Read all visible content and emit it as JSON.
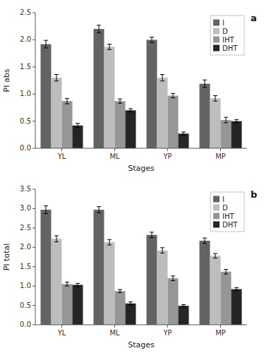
{
  "chart_data": [
    {
      "type": "bar",
      "title": "a",
      "xlabel": "Stages",
      "ylabel": "PI abs",
      "categories": [
        "YL",
        "ML",
        "YP",
        "MP"
      ],
      "series": [
        {
          "name": "I",
          "color": "#636363",
          "values": [
            1.92,
            2.2,
            2.0,
            1.19
          ],
          "errors": [
            0.07,
            0.07,
            0.05,
            0.07
          ]
        },
        {
          "name": "D",
          "color": "#bdbdbd",
          "values": [
            1.3,
            1.87,
            1.3,
            0.92
          ],
          "errors": [
            0.06,
            0.05,
            0.06,
            0.05
          ]
        },
        {
          "name": "IHT",
          "color": "#969696",
          "values": [
            0.87,
            0.87,
            0.97,
            0.52
          ],
          "errors": [
            0.05,
            0.04,
            0.04,
            0.05
          ]
        },
        {
          "name": "DHT",
          "color": "#252525",
          "values": [
            0.42,
            0.7,
            0.27,
            0.5
          ],
          "errors": [
            0.04,
            0.03,
            0.03,
            0.03
          ]
        }
      ],
      "ylim": [
        0,
        2.5
      ],
      "yticks": [
        {
          "value": 0,
          "label": "0.0"
        },
        0.5,
        {
          "value": 1,
          "label": "1.0"
        },
        1.5,
        {
          "value": 2,
          "label": "2.0"
        },
        2.5
      ],
      "grid": false,
      "legend": "upper right"
    },
    {
      "type": "bar",
      "title": "b",
      "xlabel": "Stages",
      "ylabel": "PI total",
      "categories": [
        "YL",
        "ML",
        "YP",
        "MP"
      ],
      "series": [
        {
          "name": "I",
          "color": "#636363",
          "values": [
            2.97,
            2.97,
            2.32,
            2.17
          ],
          "errors": [
            0.1,
            0.08,
            0.07,
            0.07
          ]
        },
        {
          "name": "D",
          "color": "#bdbdbd",
          "values": [
            2.22,
            2.13,
            1.92,
            1.78
          ],
          "errors": [
            0.08,
            0.07,
            0.07,
            0.06
          ]
        },
        {
          "name": "IHT",
          "color": "#969696",
          "values": [
            1.05,
            0.87,
            1.2,
            1.37
          ],
          "errors": [
            0.05,
            0.04,
            0.06,
            0.06
          ]
        },
        {
          "name": "DHT",
          "color": "#252525",
          "values": [
            1.03,
            0.55,
            0.49,
            0.92
          ],
          "errors": [
            0.04,
            0.04,
            0.03,
            0.04
          ]
        }
      ],
      "ylim": [
        0,
        3.5
      ],
      "yticks": [
        {
          "value": 0,
          "label": "0.0"
        },
        0.5,
        {
          "value": 1,
          "label": "1.0"
        },
        1.5,
        {
          "value": 2,
          "label": "2.0"
        },
        2.5,
        {
          "value": 3,
          "label": "3.0"
        },
        3.5
      ],
      "grid": false,
      "legend": "upper right"
    }
  ]
}
